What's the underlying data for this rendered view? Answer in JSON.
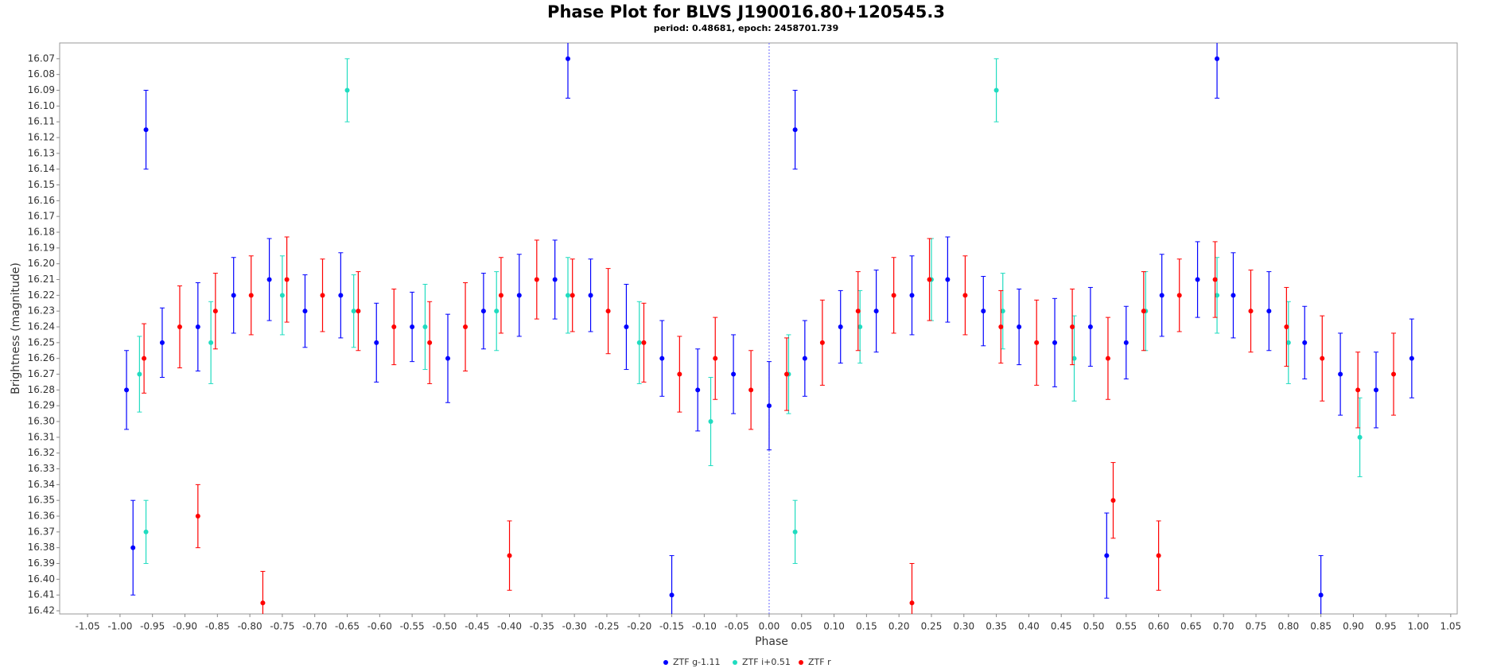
{
  "chart_data": {
    "type": "scatter",
    "title": "Phase Plot for BLVS J190016.80+120545.3",
    "subtitle": "period: 0.48681, epoch: 2458701.739",
    "x_label": "Phase",
    "y_label": "Brightness (magnitude)",
    "xlim": [
      -1.093,
      1.06
    ],
    "ylim": [
      16.422,
      16.06
    ],
    "vline": 0,
    "xticks": [
      -1.05,
      {
        "value": -1,
        "label": "-1.00"
      },
      -0.95,
      {
        "value": -0.9,
        "label": "-0.90"
      },
      -0.85,
      {
        "value": -0.8,
        "label": "-0.80"
      },
      -0.75,
      {
        "value": -0.7,
        "label": "-0.70"
      },
      -0.65,
      {
        "value": -0.6,
        "label": "-0.60"
      },
      -0.55,
      {
        "value": -0.5,
        "label": "-0.50"
      },
      -0.45,
      {
        "value": -0.4,
        "label": "-0.40"
      },
      -0.35,
      {
        "value": -0.3,
        "label": "-0.30"
      },
      -0.25,
      {
        "value": -0.2,
        "label": "-0.20"
      },
      -0.15,
      {
        "value": -0.1,
        "label": "-0.10"
      },
      -0.05,
      {
        "value": 0,
        "label": "0.00"
      },
      0.05,
      {
        "value": 0.1,
        "label": "0.10"
      },
      0.15,
      {
        "value": 0.2,
        "label": "0.20"
      },
      0.25,
      {
        "value": 0.3,
        "label": "0.30"
      },
      0.35,
      {
        "value": 0.4,
        "label": "0.40"
      },
      0.45,
      {
        "value": 0.5,
        "label": "0.50"
      },
      0.55,
      {
        "value": 0.6,
        "label": "0.60"
      },
      0.65,
      {
        "value": 0.7,
        "label": "0.70"
      },
      0.75,
      {
        "value": 0.8,
        "label": "0.80"
      },
      0.85,
      {
        "value": 0.9,
        "label": "0.90"
      },
      0.95,
      {
        "value": 1,
        "label": "1.00"
      },
      1.05
    ],
    "yticks": [
      16.07,
      16.08,
      16.09,
      {
        "value": 16.1,
        "label": "16.10"
      },
      16.11,
      16.12,
      16.13,
      16.14,
      16.15,
      16.16,
      16.17,
      16.18,
      16.19,
      {
        "value": 16.2,
        "label": "16.20"
      },
      16.21,
      16.22,
      16.23,
      16.24,
      16.25,
      16.26,
      16.27,
      16.28,
      16.29,
      {
        "value": 16.3,
        "label": "16.30"
      },
      16.31,
      16.32,
      16.33,
      16.34,
      16.35,
      16.36,
      16.37,
      16.38,
      16.39,
      {
        "value": 16.4,
        "label": "16.40"
      },
      16.41,
      16.42
    ],
    "series": [
      {
        "name": "ZTF g-1.11",
        "color": "#0000ff",
        "x": [
          -0.99,
          -0.935,
          -0.88,
          -0.825,
          -0.77,
          -0.715,
          -0.66,
          -0.605,
          -0.55,
          -0.495,
          -0.44,
          -0.385,
          -0.33,
          -0.275,
          -0.22,
          -0.165,
          -0.11,
          -0.055,
          0.0,
          0.055,
          0.11,
          0.165,
          0.22,
          0.275,
          0.33,
          0.385,
          0.44,
          0.495,
          0.55,
          0.605,
          0.66,
          0.715,
          0.77,
          0.825,
          0.88,
          0.935,
          0.99,
          -0.96,
          0.04,
          -0.98,
          0.85,
          0.69,
          -0.31,
          -0.15,
          0.52
        ],
        "values": [
          16.28,
          16.25,
          16.24,
          16.22,
          16.21,
          16.23,
          16.22,
          16.25,
          16.24,
          16.26,
          16.23,
          16.22,
          16.21,
          16.22,
          16.24,
          16.26,
          16.28,
          16.27,
          16.29,
          16.26,
          16.24,
          16.23,
          16.22,
          16.21,
          16.23,
          16.24,
          16.25,
          16.24,
          16.25,
          16.22,
          16.21,
          16.22,
          16.23,
          16.25,
          16.27,
          16.28,
          16.26,
          16.115,
          16.115,
          16.38,
          16.41,
          16.07,
          16.07,
          16.41,
          16.385
        ],
        "errors": [
          0.025,
          0.022,
          0.028,
          0.024,
          0.026,
          0.023,
          0.027,
          0.025,
          0.022,
          0.028,
          0.024,
          0.026,
          0.025,
          0.023,
          0.027,
          0.024,
          0.026,
          0.025,
          0.028,
          0.024,
          0.023,
          0.026,
          0.025,
          0.027,
          0.022,
          0.024,
          0.028,
          0.025,
          0.023,
          0.026,
          0.024,
          0.027,
          0.025,
          0.023,
          0.026,
          0.024,
          0.025,
          0.025,
          0.025,
          0.03,
          0.025,
          0.025,
          0.025,
          0.025,
          0.027
        ]
      },
      {
        "name": "ZTF i+0.51",
        "color": "#20dcc0",
        "x": [
          -0.97,
          -0.86,
          -0.75,
          -0.64,
          -0.53,
          -0.42,
          -0.31,
          -0.2,
          -0.09,
          0.03,
          0.14,
          0.25,
          0.36,
          0.47,
          0.58,
          0.69,
          0.8,
          0.91,
          -0.65,
          0.35,
          -0.96,
          0.04
        ],
        "values": [
          16.27,
          16.25,
          16.22,
          16.23,
          16.24,
          16.23,
          16.22,
          16.25,
          16.3,
          16.27,
          16.24,
          16.21,
          16.23,
          16.26,
          16.23,
          16.22,
          16.25,
          16.31,
          16.09,
          16.09,
          16.37,
          16.37
        ],
        "errors": [
          0.024,
          0.026,
          0.025,
          0.023,
          0.027,
          0.025,
          0.024,
          0.026,
          0.028,
          0.025,
          0.023,
          0.026,
          0.024,
          0.027,
          0.025,
          0.024,
          0.026,
          0.025,
          0.02,
          0.02,
          0.02,
          0.02
        ]
      },
      {
        "name": "ZTF r",
        "color": "#ff0000",
        "x": [
          -0.963,
          -0.908,
          -0.853,
          -0.798,
          -0.743,
          -0.688,
          -0.633,
          -0.578,
          -0.523,
          -0.468,
          -0.413,
          -0.358,
          -0.303,
          -0.248,
          -0.193,
          -0.138,
          -0.083,
          -0.028,
          0.027,
          0.082,
          0.137,
          0.192,
          0.247,
          0.302,
          0.357,
          0.412,
          0.467,
          0.522,
          0.577,
          0.632,
          0.687,
          0.742,
          0.797,
          0.852,
          0.907,
          0.962,
          -0.78,
          0.22,
          -0.4,
          0.6,
          -0.88,
          0.53
        ],
        "values": [
          16.26,
          16.24,
          16.23,
          16.22,
          16.21,
          16.22,
          16.23,
          16.24,
          16.25,
          16.24,
          16.22,
          16.21,
          16.22,
          16.23,
          16.25,
          16.27,
          16.26,
          16.28,
          16.27,
          16.25,
          16.23,
          16.22,
          16.21,
          16.22,
          16.24,
          16.25,
          16.24,
          16.26,
          16.23,
          16.22,
          16.21,
          16.23,
          16.24,
          16.26,
          16.28,
          16.27,
          16.415,
          16.415,
          16.385,
          16.385,
          16.36,
          16.35
        ],
        "errors": [
          0.022,
          0.026,
          0.024,
          0.025,
          0.027,
          0.023,
          0.025,
          0.024,
          0.026,
          0.028,
          0.024,
          0.025,
          0.023,
          0.027,
          0.025,
          0.024,
          0.026,
          0.025,
          0.023,
          0.027,
          0.025,
          0.024,
          0.026,
          0.025,
          0.023,
          0.027,
          0.024,
          0.026,
          0.025,
          0.023,
          0.024,
          0.026,
          0.025,
          0.027,
          0.024,
          0.026,
          0.02,
          0.025,
          0.022,
          0.022,
          0.02,
          0.024
        ]
      }
    ]
  }
}
